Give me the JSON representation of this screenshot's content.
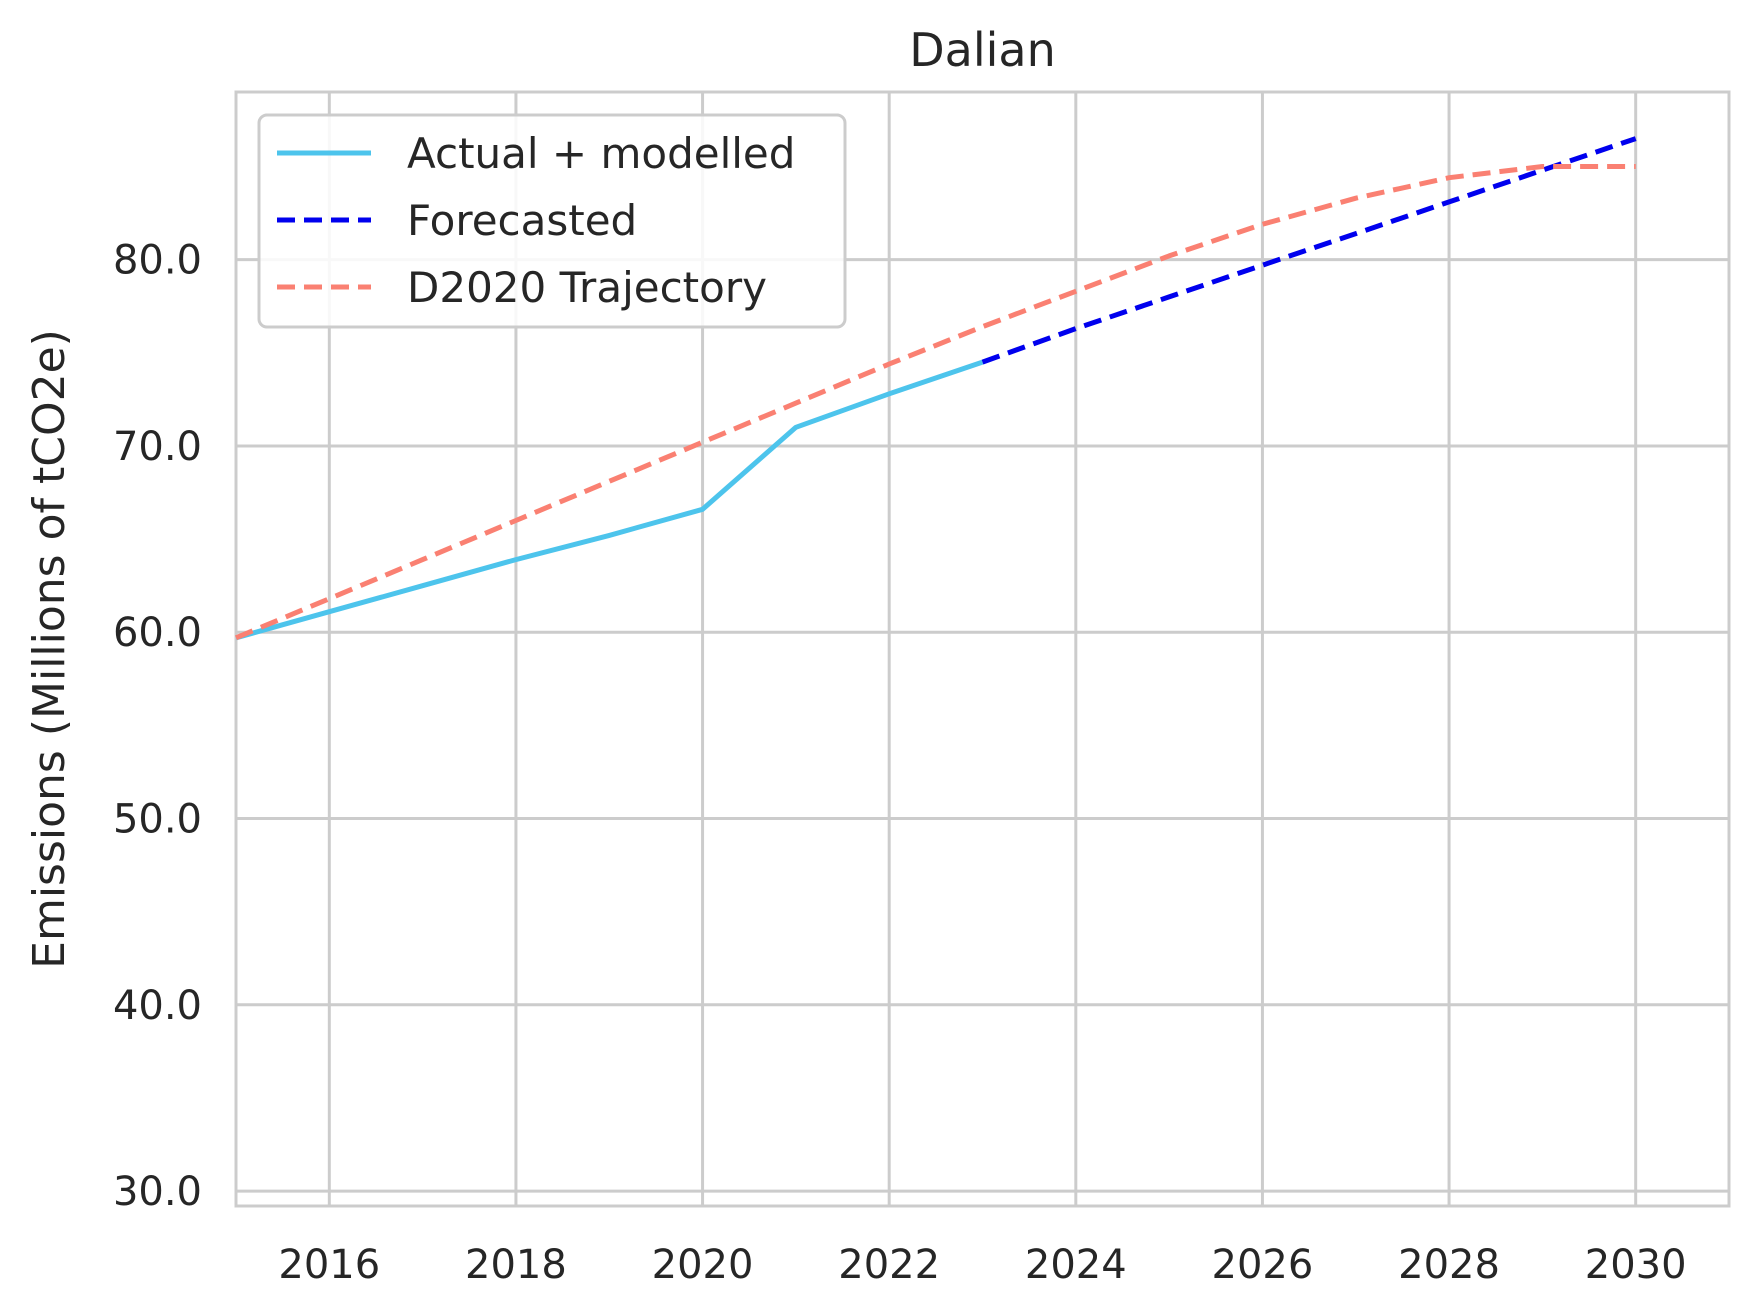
{
  "chart_data": {
    "type": "line",
    "title": "Dalian",
    "xlabel": "",
    "ylabel": "Emissions (Millions of tCO2e)",
    "xlim": [
      2015,
      2031
    ],
    "ylim": [
      29.2,
      89.0
    ],
    "xticks": [
      2016,
      2018,
      2020,
      2022,
      2024,
      2026,
      2028,
      2030
    ],
    "xtick_labels": [
      "2016",
      "2018",
      "2020",
      "2022",
      "2024",
      "2026",
      "2028",
      "2030"
    ],
    "yticks": [
      30,
      40,
      50,
      60,
      70,
      80
    ],
    "ytick_labels": [
      "30.0",
      "40.0",
      "50.0",
      "60.0",
      "70.0",
      "80.0"
    ],
    "grid": true,
    "legend_position": "top-left",
    "series": [
      {
        "name": "Actual + modelled",
        "style": "solid",
        "color": "#4dc4ec",
        "x": [
          2015,
          2016,
          2017,
          2018,
          2019,
          2020,
          2021,
          2022,
          2023
        ],
        "y": [
          59.7,
          61.1,
          62.5,
          63.9,
          65.2,
          66.6,
          71.0,
          72.8,
          74.5
        ]
      },
      {
        "name": "Forecasted",
        "style": "dashed",
        "color": "#0000ee",
        "x": [
          2023,
          2024,
          2025,
          2026,
          2027,
          2028,
          2029,
          2030
        ],
        "y": [
          74.5,
          76.3,
          78.0,
          79.7,
          81.4,
          83.1,
          84.8,
          86.5
        ]
      },
      {
        "name": "D2020 Trajectory",
        "style": "dashed",
        "color": "#fa8072",
        "x": [
          2015,
          2016,
          2017,
          2018,
          2019,
          2020,
          2021,
          2022,
          2023,
          2024,
          2025,
          2026,
          2027,
          2028,
          2029,
          2030
        ],
        "y": [
          59.7,
          61.8,
          63.9,
          66.0,
          68.1,
          70.2,
          72.3,
          74.4,
          76.4,
          78.3,
          80.2,
          81.9,
          83.3,
          84.4,
          85.0,
          85.0
        ]
      }
    ]
  }
}
